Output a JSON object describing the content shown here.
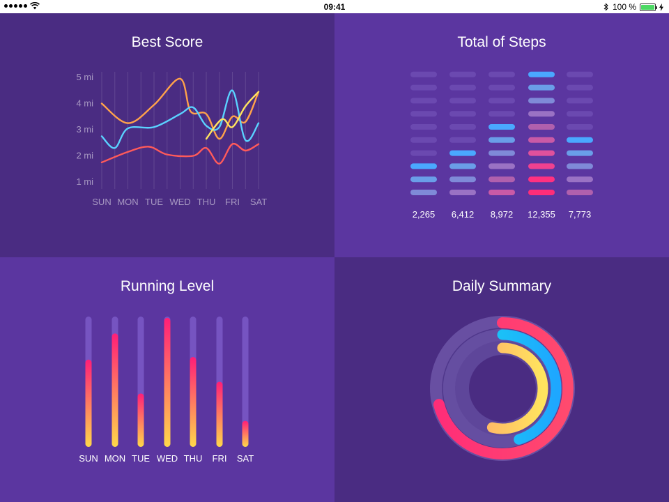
{
  "status_bar": {
    "time": "09:41",
    "battery_text": "100 %",
    "battery_level": 1.0,
    "icons": [
      "signal-dots-icon",
      "wifi-icon",
      "bluetooth-icon",
      "battery-icon",
      "charging-bolt-icon"
    ]
  },
  "colors": {
    "panel_dark": "#4a2c82",
    "panel_light": "#5b36a0",
    "pink": "#ff2d78",
    "orange": "#ffa24a",
    "yellow": "#ffe45e",
    "cyan": "#5ad2ff",
    "coral": "#ff5a5a"
  },
  "best_score": {
    "title": "Best Score",
    "chart_data": {
      "type": "line",
      "categories": [
        "SUN",
        "MON",
        "TUE",
        "WED",
        "THU",
        "FRI",
        "SAT"
      ],
      "y_ticks": [
        "5 mi",
        "4 mi",
        "3 mi",
        "2 mi",
        "1 mi"
      ],
      "ylim": [
        1,
        5
      ],
      "grid": true,
      "series": [
        {
          "color": "#ffa24a",
          "x": [
            0,
            1,
            2,
            3,
            3.4,
            4,
            4.5,
            5,
            5.5,
            6
          ],
          "values": [
            4.0,
            3.25,
            3.95,
            4.95,
            3.7,
            3.6,
            2.65,
            3.5,
            3.3,
            4.45
          ]
        },
        {
          "color": "#5ad2ff",
          "x": [
            0,
            0.5,
            1,
            2,
            3,
            3.5,
            4,
            4.5,
            5,
            5.5,
            6
          ],
          "values": [
            2.75,
            2.3,
            3.05,
            3.1,
            3.6,
            3.85,
            3.15,
            3.1,
            4.5,
            2.6,
            3.25
          ]
        },
        {
          "color": "#ffe45e",
          "x": [
            4,
            4.6,
            5,
            5.5,
            6
          ],
          "values": [
            2.65,
            3.4,
            3.1,
            3.9,
            4.45
          ]
        },
        {
          "color": "#ff5a5a",
          "x": [
            0,
            1,
            1.8,
            2.5,
            3.5,
            4,
            4.5,
            5,
            5.5,
            6
          ],
          "values": [
            1.75,
            2.15,
            2.35,
            2.05,
            2.0,
            2.3,
            1.7,
            2.45,
            2.2,
            2.45
          ]
        }
      ]
    }
  },
  "total_steps": {
    "title": "Total of Steps",
    "chart_data": {
      "type": "bar",
      "categories": [
        "2,265",
        "6,412",
        "8,972",
        "12,355",
        "7,773"
      ],
      "values": [
        2265,
        6412,
        8972,
        12355,
        7773
      ],
      "segments_max": 10,
      "segments_lit": [
        3,
        4,
        6,
        10,
        5
      ]
    }
  },
  "running_level": {
    "title": "Running Level",
    "chart_data": {
      "type": "bar",
      "categories": [
        "SUN",
        "MON",
        "TUE",
        "WED",
        "THU",
        "FRI",
        "SAT"
      ],
      "values": [
        0.67,
        0.87,
        0.41,
        0.99,
        0.69,
        0.5,
        0.2
      ],
      "ylim": [
        0,
        1
      ]
    }
  },
  "daily_summary": {
    "title": "Daily Summary",
    "chart_data": {
      "type": "pie",
      "rings": [
        {
          "color_start": "#ff4a6e",
          "color_end": "#ff2d78",
          "fraction": 0.71
        },
        {
          "color_start": "#1ea7ff",
          "color_end": "#18d8f0",
          "fraction": 0.45
        },
        {
          "color_start": "#ffe45e",
          "color_end": "#ffa86a",
          "fraction": 0.54
        }
      ]
    }
  }
}
